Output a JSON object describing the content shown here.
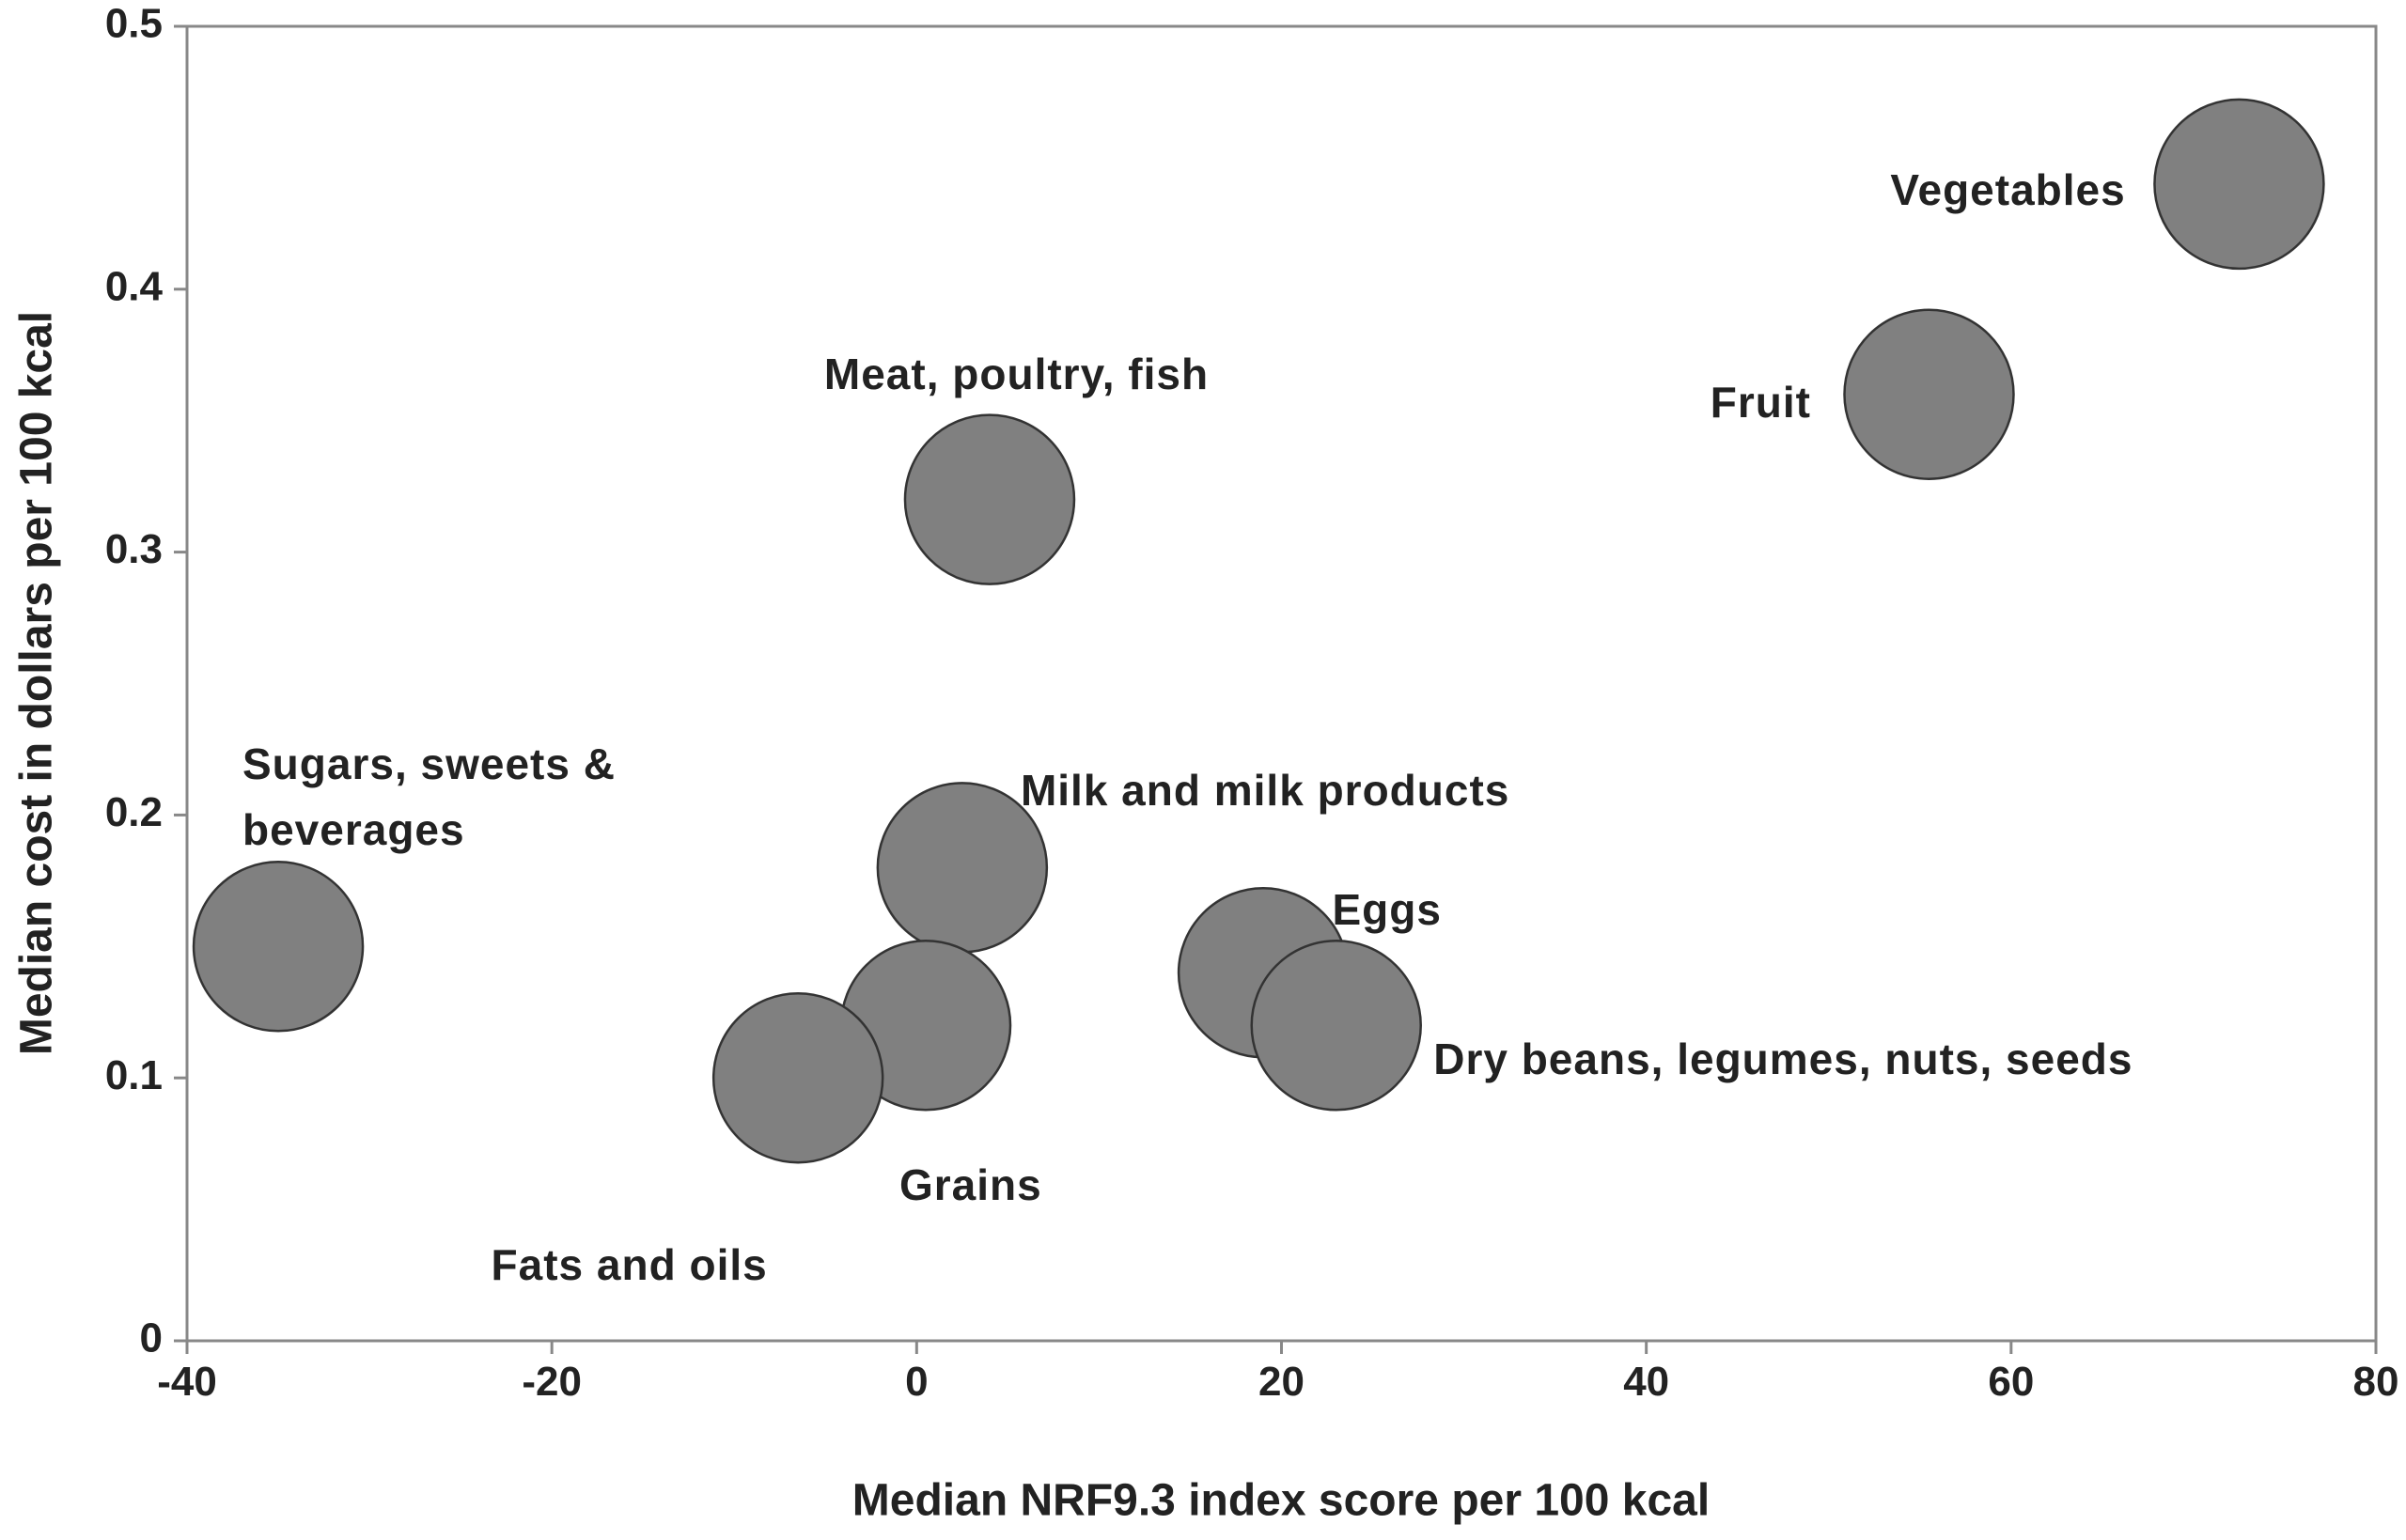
{
  "chart_data": {
    "type": "bubble",
    "x_label": "Median NRF9.3 index score per 100 kcal",
    "y_label": "Median cost in dollars per 100 kcal",
    "xlim": [
      -40,
      80
    ],
    "xticks": [
      -40,
      -20,
      0,
      20,
      40,
      60,
      80
    ],
    "ylim": [
      0,
      0.5
    ],
    "yticks": [
      0,
      0.1,
      0.2,
      0.3,
      0.4,
      0.5
    ],
    "color": "#808080",
    "labels": [
      "Vegetables",
      "Fruit",
      "Meat, poultry, fish",
      "Sugars, sweets & beverages",
      "Milk and milk products",
      "Eggs",
      "Dry beans, legumes, nuts, seeds",
      "Grains",
      "Fats and oils"
    ],
    "x": [
      72.5,
      55.5,
      4,
      -35,
      2.5,
      19,
      23,
      0.5,
      -6.5
    ],
    "values": [
      0.44,
      0.36,
      0.32,
      0.15,
      0.18,
      0.14,
      0.12,
      0.12,
      0.1
    ]
  }
}
